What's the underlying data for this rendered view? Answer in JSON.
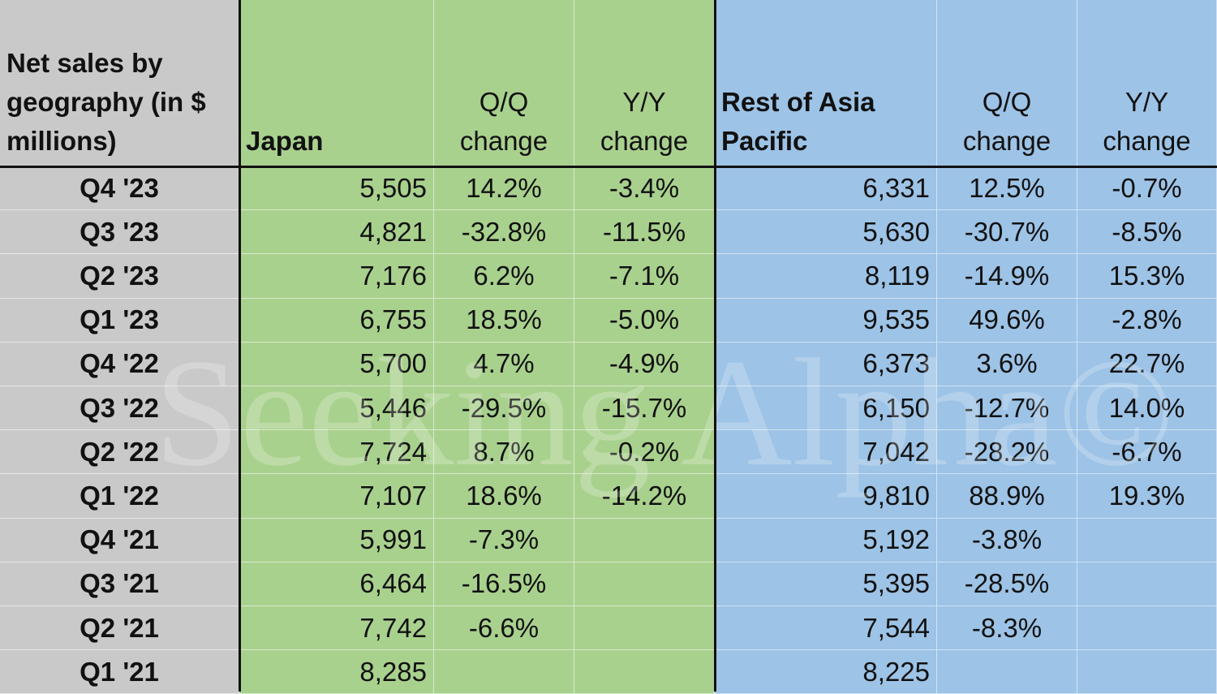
{
  "table": {
    "header": [
      "Net sales by geography (in $ millions)",
      "Japan",
      "Q/Q change",
      "Y/Y change",
      "Rest of Asia Pacific",
      "Q/Q change",
      "Y/Y change"
    ],
    "rows": [
      [
        "Q4 '23",
        "5,505",
        "14.2%",
        "-3.4%",
        "6,331",
        "12.5%",
        "-0.7%"
      ],
      [
        "Q3 '23",
        "4,821",
        "-32.8%",
        "-11.5%",
        "5,630",
        "-30.7%",
        "-8.5%"
      ],
      [
        "Q2 '23",
        "7,176",
        "6.2%",
        "-7.1%",
        "8,119",
        "-14.9%",
        "15.3%"
      ],
      [
        "Q1 '23",
        "6,755",
        "18.5%",
        "-5.0%",
        "9,535",
        "49.6%",
        "-2.8%"
      ],
      [
        "Q4 '22",
        "5,700",
        "4.7%",
        "-4.9%",
        "6,373",
        "3.6%",
        "22.7%"
      ],
      [
        "Q3 '22",
        "5,446",
        "-29.5%",
        "-15.7%",
        "6,150",
        "-12.7%",
        "14.0%"
      ],
      [
        "Q2 '22",
        "7,724",
        "8.7%",
        "-0.2%",
        "7,042",
        "-28.2%",
        "-6.7%"
      ],
      [
        "Q1 '22",
        "7,107",
        "18.6%",
        "-14.2%",
        "9,810",
        "88.9%",
        "19.3%"
      ],
      [
        "Q4 '21",
        "5,991",
        "-7.3%",
        null,
        "5,192",
        "-3.8%",
        null
      ],
      [
        "Q3 '21",
        "6,464",
        "-16.5%",
        null,
        "5,395",
        "-28.5%",
        null
      ],
      [
        "Q2 '21",
        "7,742",
        "-6.6%",
        null,
        "7,544",
        "-8.3%",
        null
      ],
      [
        "Q1 '21",
        "8,285",
        null,
        null,
        "8,225",
        null,
        null
      ]
    ]
  },
  "watermark": "Seeking Alpha©"
}
